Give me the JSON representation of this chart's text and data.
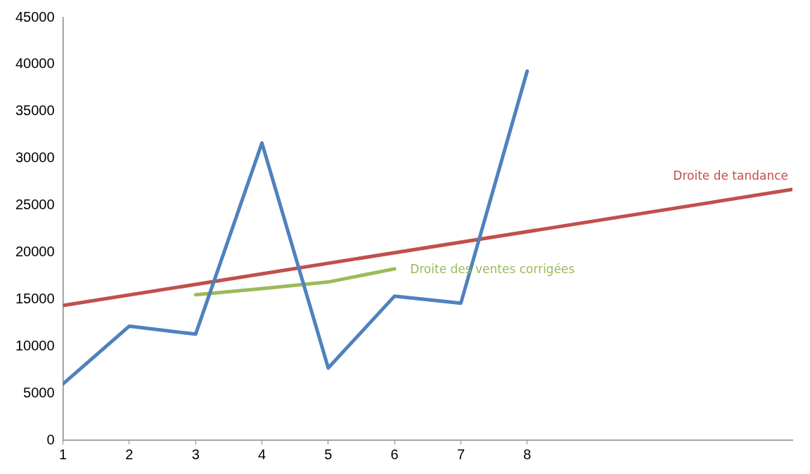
{
  "chart_data": {
    "type": "line",
    "xlim": [
      1,
      12
    ],
    "xticks": [
      1,
      2,
      3,
      4,
      5,
      6,
      7,
      8
    ],
    "ylim": [
      0,
      45000
    ],
    "yticks": [
      0,
      5000,
      10000,
      15000,
      20000,
      25000,
      30000,
      35000,
      40000,
      45000
    ],
    "grid": false,
    "legend": false,
    "marker": "none",
    "line_style": "solid",
    "series": [
      {
        "color": "#4f81bd",
        "x": [
          1,
          2,
          3,
          4,
          5,
          6,
          7,
          8
        ],
        "values": [
          6000,
          12150,
          11300,
          31650,
          7700,
          15350,
          14600,
          39300
        ]
      },
      {
        "name": "Droite de tandance",
        "color": "#c0504d",
        "x": [
          1,
          12
        ],
        "values": [
          14350,
          26700
        ]
      },
      {
        "name": "Droite des ventes corrigées",
        "color": "#9bbb59",
        "x": [
          3,
          4,
          5,
          6
        ],
        "values": [
          15500,
          16150,
          16850,
          18250
        ]
      }
    ]
  }
}
